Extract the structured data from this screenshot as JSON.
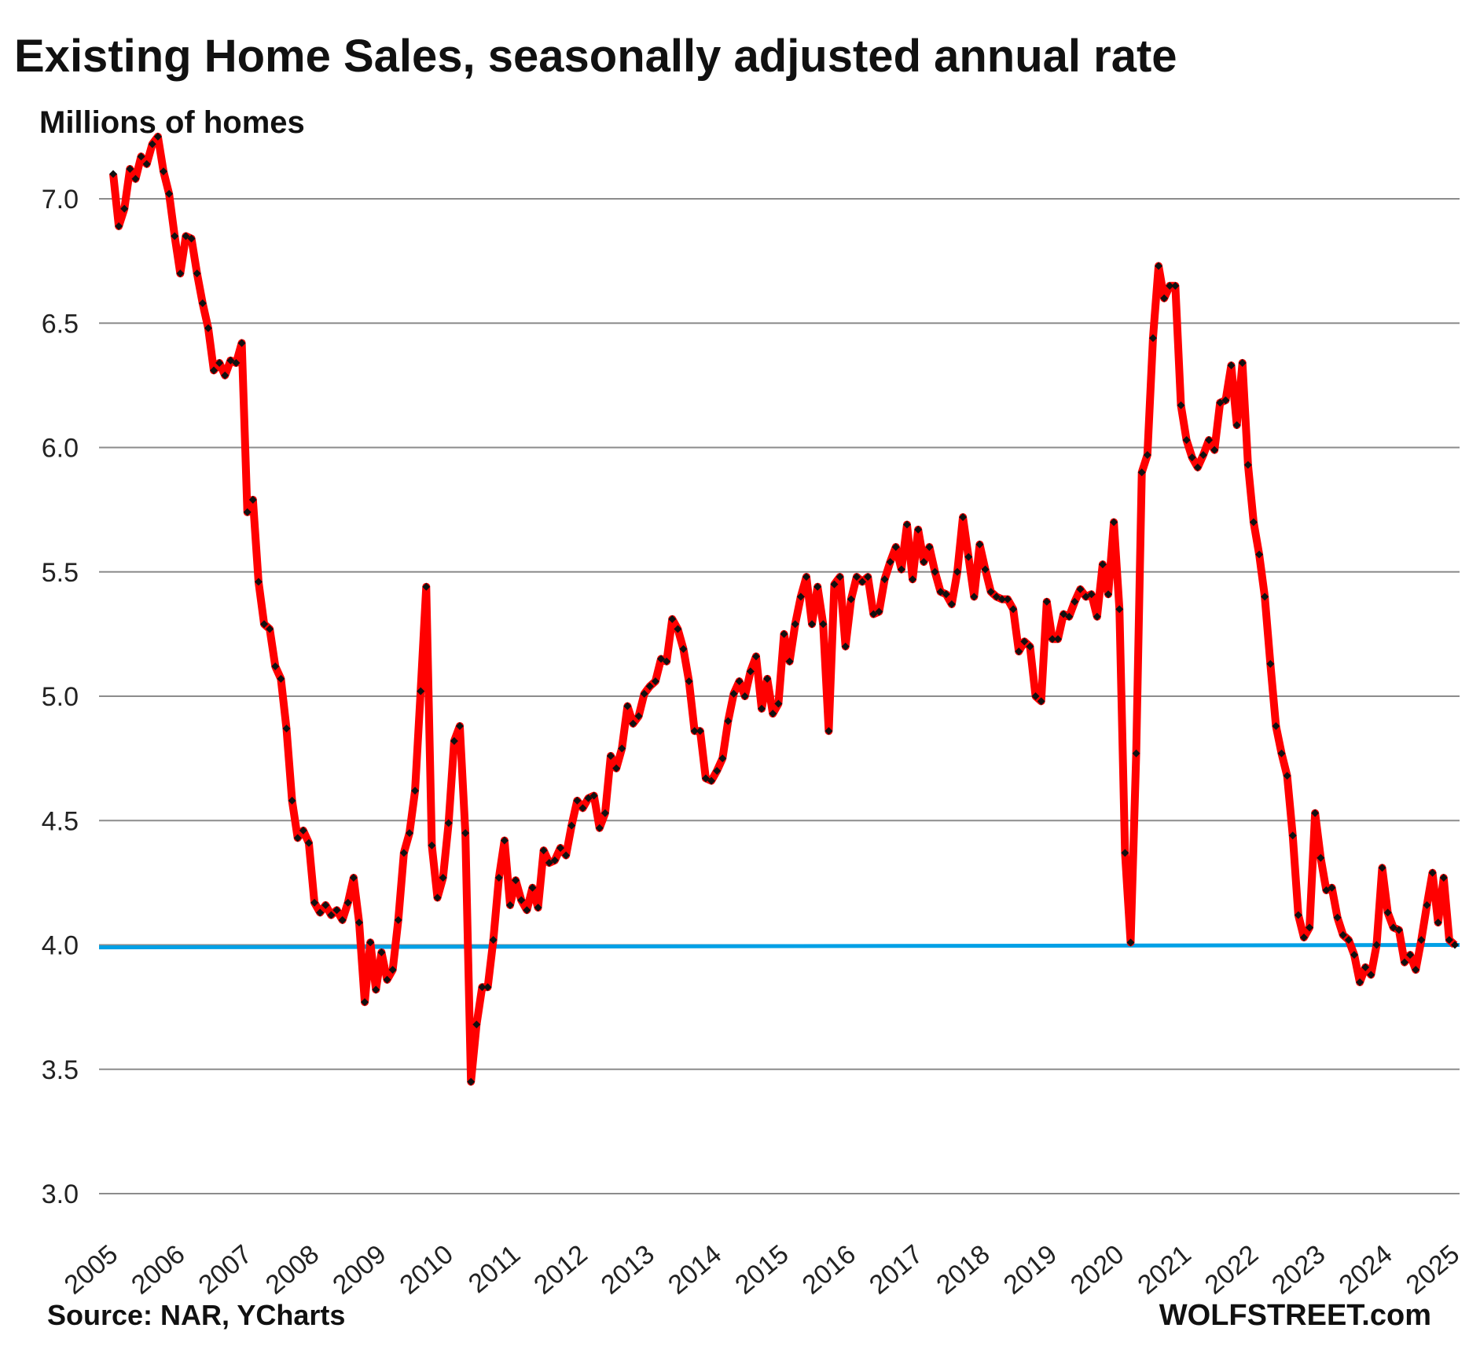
{
  "chart_data": {
    "type": "line",
    "title": "Existing Home Sales, seasonally adjusted annual rate",
    "ylabel": "Millions of homes",
    "xlabel": "",
    "ylim": [
      3.0,
      7.3
    ],
    "yticks": [
      "3.0",
      "3.5",
      "4.0",
      "4.5",
      "5.0",
      "5.5",
      "6.0",
      "6.5",
      "7.0"
    ],
    "ytick_values": [
      3.0,
      3.5,
      4.0,
      4.5,
      5.0,
      5.5,
      6.0,
      6.5,
      7.0
    ],
    "xticks": [
      "2005",
      "2006",
      "2007",
      "2008",
      "2009",
      "2010",
      "2011",
      "2012",
      "2013",
      "2014",
      "2015",
      "2016",
      "2017",
      "2018",
      "2019",
      "2020",
      "2021",
      "2022",
      "2023",
      "2024",
      "2025"
    ],
    "grid": true,
    "start": "2005-01",
    "frequency": "monthly",
    "series": [
      {
        "name": "Existing home sales",
        "color": "#ff0000",
        "marker_color": "#111111",
        "values": [
          7.1,
          6.89,
          6.96,
          7.12,
          7.08,
          7.17,
          7.14,
          7.22,
          7.25,
          7.11,
          7.02,
          6.85,
          6.7,
          6.85,
          6.84,
          6.7,
          6.58,
          6.48,
          6.31,
          6.34,
          6.29,
          6.35,
          6.34,
          6.42,
          5.74,
          5.79,
          5.46,
          5.29,
          5.27,
          5.12,
          5.07,
          4.87,
          4.58,
          4.43,
          4.46,
          4.41,
          4.17,
          4.13,
          4.16,
          4.12,
          4.14,
          4.1,
          4.17,
          4.27,
          4.09,
          3.77,
          4.01,
          3.82,
          3.97,
          3.86,
          3.9,
          4.1,
          4.37,
          4.45,
          4.62,
          5.02,
          5.44,
          4.4,
          4.19,
          4.27,
          4.49,
          4.82,
          4.88,
          4.45,
          3.45,
          3.68,
          3.83,
          3.83,
          4.02,
          4.27,
          4.42,
          4.16,
          4.26,
          4.18,
          4.14,
          4.23,
          4.15,
          4.38,
          4.33,
          4.34,
          4.39,
          4.36,
          4.48,
          4.58,
          4.55,
          4.59,
          4.6,
          4.47,
          4.53,
          4.76,
          4.71,
          4.79,
          4.96,
          4.89,
          4.92,
          5.01,
          5.04,
          5.06,
          5.15,
          5.14,
          5.31,
          5.27,
          5.19,
          5.06,
          4.86,
          4.86,
          4.67,
          4.66,
          4.7,
          4.75,
          4.9,
          5.01,
          5.06,
          5.0,
          5.1,
          5.16,
          4.95,
          5.07,
          4.93,
          4.97,
          5.25,
          5.14,
          5.29,
          5.4,
          5.48,
          5.29,
          5.44,
          5.29,
          4.86,
          5.45,
          5.48,
          5.2,
          5.39,
          5.48,
          5.46,
          5.48,
          5.33,
          5.34,
          5.47,
          5.54,
          5.6,
          5.51,
          5.69,
          5.47,
          5.67,
          5.54,
          5.6,
          5.5,
          5.42,
          5.41,
          5.37,
          5.5,
          5.72,
          5.56,
          5.4,
          5.61,
          5.51,
          5.42,
          5.4,
          5.39,
          5.39,
          5.35,
          5.18,
          5.22,
          5.2,
          5.0,
          4.98,
          5.38,
          5.23,
          5.23,
          5.33,
          5.32,
          5.38,
          5.43,
          5.4,
          5.41,
          5.32,
          5.53,
          5.41,
          5.7,
          5.35,
          4.37,
          4.01,
          4.77,
          5.9,
          5.97,
          6.44,
          6.73,
          6.6,
          6.65,
          6.65,
          6.17,
          6.03,
          5.96,
          5.92,
          5.97,
          6.03,
          5.99,
          6.18,
          6.19,
          6.33,
          6.09,
          6.34,
          5.93,
          5.7,
          5.57,
          5.4,
          5.13,
          4.88,
          4.77,
          4.68,
          4.44,
          4.12,
          4.03,
          4.07,
          4.53,
          4.35,
          4.22,
          4.23,
          4.11,
          4.04,
          4.02,
          3.96,
          3.85,
          3.91,
          3.88,
          4.0,
          4.31,
          4.13,
          4.07,
          4.06,
          3.93,
          3.96,
          3.9,
          4.02,
          4.16,
          4.29,
          4.09,
          4.27,
          4.02,
          4.0
        ]
      },
      {
        "name": "4.0 reference line",
        "color": "#00a0e6",
        "values": [
          3.99,
          4.0
        ]
      }
    ]
  },
  "footer": {
    "source": "Source: NAR, YCharts",
    "brand": "WOLFSTREET.com"
  }
}
